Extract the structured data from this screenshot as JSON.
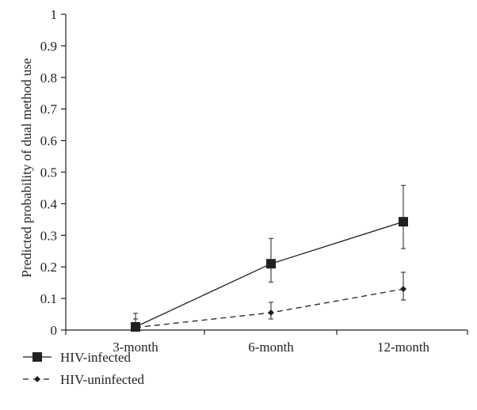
{
  "chart_data": {
    "type": "line",
    "ylabel": "Predicted probability of dual method use",
    "xlabel": "",
    "categories": [
      "3-month",
      "6-month",
      "12-month"
    ],
    "ylim": [
      0,
      1
    ],
    "yticks": [
      0,
      0.1,
      0.2,
      0.3,
      0.4,
      0.5,
      0.6,
      0.7,
      0.8,
      0.9,
      1
    ],
    "grid": false,
    "legend_position": "bottom-left",
    "series": [
      {
        "name": "HIV-infected",
        "marker": "square",
        "line_style": "solid",
        "color": "#231f20",
        "values": [
          0.01,
          0.21,
          0.343
        ],
        "error_low": [
          0.0,
          0.152,
          0.258
        ],
        "error_high": [
          0.053,
          0.29,
          0.458
        ]
      },
      {
        "name": "HIV-uninfected",
        "marker": "diamond",
        "line_style": "dashed",
        "color": "#231f20",
        "values": [
          0.008,
          0.055,
          0.13
        ],
        "error_low": [
          0.0,
          0.035,
          0.095
        ],
        "error_high": [
          0.035,
          0.088,
          0.183
        ]
      }
    ]
  }
}
